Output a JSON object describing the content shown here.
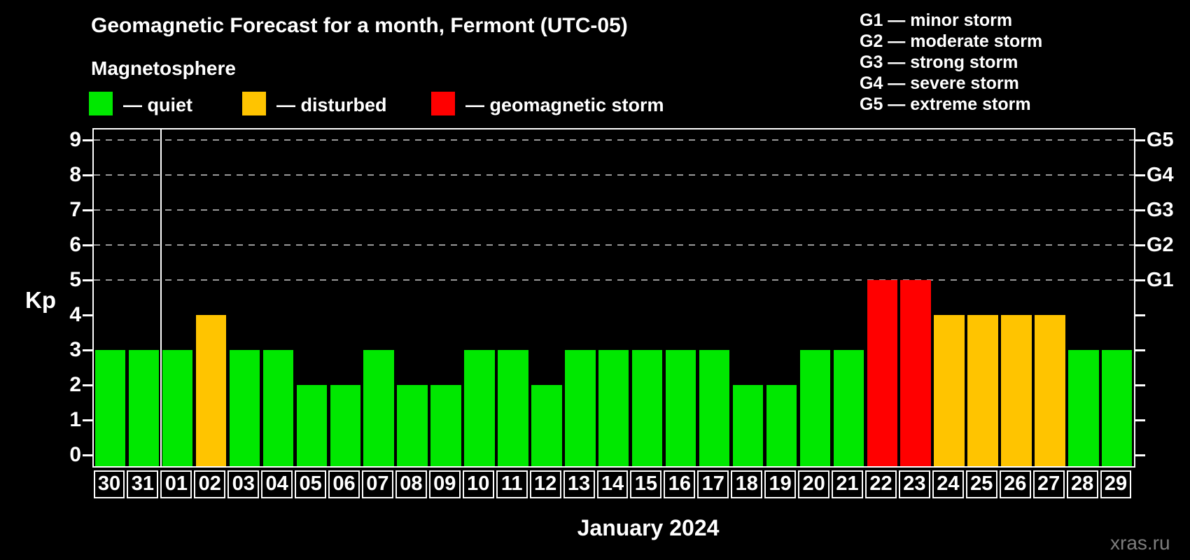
{
  "title": "Geomagnetic Forecast for a month, Fermont (UTC-05)",
  "subtitle": "Magnetosphere",
  "legend": {
    "items": [
      {
        "status": "quiet",
        "label": "— quiet",
        "color": "#00e800"
      },
      {
        "status": "disturbed",
        "label": "— disturbed",
        "color": "#ffc400"
      },
      {
        "status": "storm",
        "label": "— geomagnetic storm",
        "color": "#ff0000"
      }
    ]
  },
  "g_scale_legend": [
    "G1 — minor storm",
    "G2 — moderate storm",
    "G3 — strong storm",
    "G4 — severe storm",
    "G5 — extreme storm"
  ],
  "colors": {
    "quiet": "#00e800",
    "disturbed": "#ffc400",
    "storm": "#ff0000",
    "background": "#000000",
    "axis": "#ffffff",
    "gridline": "#9a9a9a"
  },
  "chart_data": {
    "type": "bar",
    "title": "Geomagnetic Forecast for a month, Fermont (UTC-05)",
    "xlabel": "January 2024",
    "ylabel": "Kp",
    "ylim": [
      0,
      9
    ],
    "yticks": [
      0,
      1,
      2,
      3,
      4,
      5,
      6,
      7,
      8,
      9
    ],
    "gridlines_at": [
      5,
      6,
      7,
      8,
      9
    ],
    "grid": "dashed horizontal at Kp 5-9 only",
    "right_axis_labels": [
      {
        "label": "G1",
        "kp": 5
      },
      {
        "label": "G2",
        "kp": 6
      },
      {
        "label": "G3",
        "kp": 7
      },
      {
        "label": "G4",
        "kp": 8
      },
      {
        "label": "G5",
        "kp": 9
      }
    ],
    "month_separator_after_index": 1,
    "categories": [
      "30",
      "31",
      "01",
      "02",
      "03",
      "04",
      "05",
      "06",
      "07",
      "08",
      "09",
      "10",
      "11",
      "12",
      "13",
      "14",
      "15",
      "16",
      "17",
      "18",
      "19",
      "20",
      "21",
      "22",
      "23",
      "24",
      "25",
      "26",
      "27",
      "28",
      "29"
    ],
    "values": [
      3,
      3,
      3,
      4,
      3,
      3,
      2,
      2,
      3,
      2,
      2,
      3,
      3,
      2,
      3,
      3,
      3,
      3,
      3,
      2,
      2,
      3,
      3,
      5,
      5,
      4,
      4,
      4,
      4,
      3,
      3
    ],
    "statuses": [
      "quiet",
      "quiet",
      "quiet",
      "disturbed",
      "quiet",
      "quiet",
      "quiet",
      "quiet",
      "quiet",
      "quiet",
      "quiet",
      "quiet",
      "quiet",
      "quiet",
      "quiet",
      "quiet",
      "quiet",
      "quiet",
      "quiet",
      "quiet",
      "quiet",
      "quiet",
      "quiet",
      "storm",
      "storm",
      "disturbed",
      "disturbed",
      "disturbed",
      "disturbed",
      "quiet",
      "quiet"
    ]
  },
  "watermark": "xras.ru"
}
